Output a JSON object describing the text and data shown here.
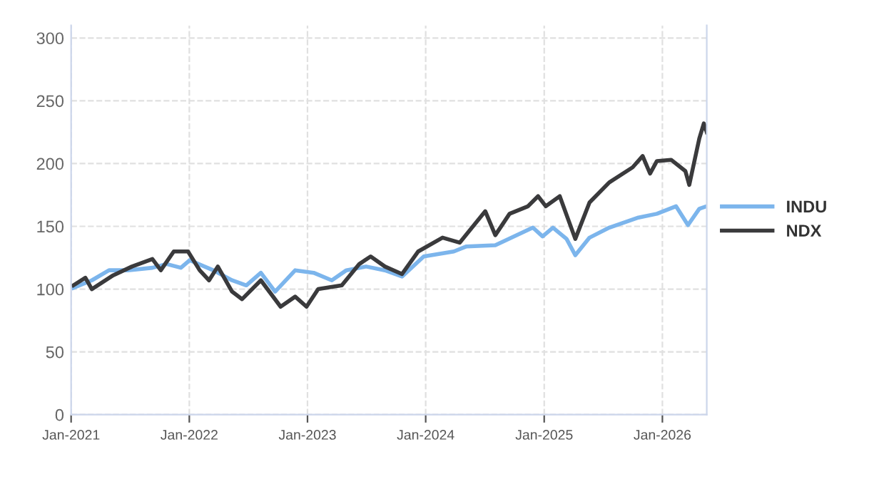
{
  "chart_data": {
    "type": "line",
    "xlim": [
      "2021-01-01",
      "2026-05-18"
    ],
    "xticks": [
      {
        "value": "2021-01-01",
        "label": "Jan-2021"
      },
      {
        "value": "2022-01-01",
        "label": "Jan-2022"
      },
      {
        "value": "2023-01-01",
        "label": "Jan-2023"
      },
      {
        "value": "2024-01-01",
        "label": "Jan-2024"
      },
      {
        "value": "2025-01-01",
        "label": "Jan-2025"
      },
      {
        "value": "2026-01-01",
        "label": "Jan-2026"
      }
    ],
    "ylim": [
      0,
      310
    ],
    "yticks": [
      0,
      50,
      100,
      150,
      200,
      250,
      300
    ],
    "grid": true,
    "legend": "right",
    "line_style": "solid",
    "marker": "none",
    "series": [
      {
        "name": "INDU",
        "color": "#7cb5ec",
        "x": [
          "2021-01-08",
          "2021-03-06",
          "2021-04-28",
          "2021-06-25",
          "2021-09-09",
          "2021-10-23",
          "2021-12-06",
          "2022-01-02",
          "2022-03-16",
          "2022-05-13",
          "2022-06-26",
          "2022-08-10",
          "2022-09-23",
          "2022-11-24",
          "2023-01-20",
          "2023-03-17",
          "2023-05-01",
          "2023-07-01",
          "2023-08-28",
          "2023-10-20",
          "2023-12-26",
          "2024-03-28",
          "2024-05-06",
          "2024-08-03",
          "2024-11-27",
          "2024-12-27",
          "2025-01-28",
          "2025-03-11",
          "2025-04-07",
          "2025-05-21",
          "2025-07-21",
          "2025-10-19",
          "2025-12-15",
          "2026-02-12",
          "2026-03-21",
          "2026-04-25",
          "2026-05-18"
        ],
        "values": [
          101,
          107,
          115,
          115,
          117,
          120,
          117,
          123,
          115,
          107,
          103,
          113,
          98,
          115,
          113,
          107,
          115,
          118,
          115,
          110,
          126,
          130,
          134,
          135,
          149,
          142,
          149,
          140,
          127,
          141,
          149,
          157,
          160,
          166,
          151,
          164,
          166
        ]
      },
      {
        "name": "NDX",
        "color": "#3a3a3c",
        "x": [
          "2021-01-08",
          "2021-02-14",
          "2021-03-06",
          "2021-05-11",
          "2021-07-08",
          "2021-09-09",
          "2021-10-05",
          "2021-11-14",
          "2021-12-28",
          "2022-02-02",
          "2022-03-03",
          "2022-03-30",
          "2022-05-13",
          "2022-06-13",
          "2022-08-10",
          "2022-10-10",
          "2022-11-24",
          "2022-12-29",
          "2023-02-03",
          "2023-04-17",
          "2023-06-10",
          "2023-07-15",
          "2023-08-28",
          "2023-10-20",
          "2023-12-09",
          "2024-02-22",
          "2024-04-15",
          "2024-07-03",
          "2024-08-03",
          "2024-09-16",
          "2024-11-12",
          "2024-12-13",
          "2025-01-06",
          "2025-02-18",
          "2025-04-07",
          "2025-05-21",
          "2025-07-21",
          "2025-10-01",
          "2025-11-01",
          "2025-11-24",
          "2025-12-15",
          "2026-01-28",
          "2026-03-13",
          "2026-03-25",
          "2026-04-25",
          "2026-05-09",
          "2026-05-18"
        ],
        "values": [
          103,
          109,
          100,
          111,
          118,
          124,
          115,
          130,
          130,
          115,
          107,
          118,
          98,
          92,
          107,
          86,
          94,
          86,
          100,
          103,
          120,
          126,
          118,
          112,
          130,
          141,
          137,
          162,
          143,
          160,
          166,
          174,
          166,
          174,
          140,
          169,
          185,
          197,
          206,
          192,
          202,
          203,
          194,
          183,
          220,
          232,
          225
        ]
      }
    ]
  }
}
